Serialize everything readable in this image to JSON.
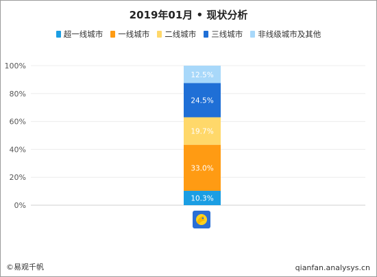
{
  "chart_data": {
    "type": "bar",
    "stacked": true,
    "title": "2019年01月 • 现状分析",
    "categories": [
      ""
    ],
    "series": [
      {
        "name": "超一线城市",
        "values": [
          10.3
        ],
        "label": "10.3%",
        "color": "#1b9ee3"
      },
      {
        "name": "一线城市",
        "values": [
          33.0
        ],
        "label": "33.0%",
        "color": "#ff9b13"
      },
      {
        "name": "二线城市",
        "values": [
          19.7
        ],
        "label": "19.7%",
        "color": "#ffd86a"
      },
      {
        "name": "三线城市",
        "values": [
          24.5
        ],
        "label": "24.5%",
        "color": "#1f6fd6"
      },
      {
        "name": "非线级城市及其他",
        "values": [
          12.5
        ],
        "label": "12.5%",
        "color": "#a8d8fa"
      }
    ],
    "y_ticks": [
      "0%",
      "20%",
      "40%",
      "60%",
      "80%",
      "100%"
    ],
    "ylim": [
      0,
      100
    ],
    "grid": true,
    "legend": "top-center"
  },
  "footer": {
    "source": "©易观千帆",
    "site": "qianfan.analysys.cn"
  }
}
